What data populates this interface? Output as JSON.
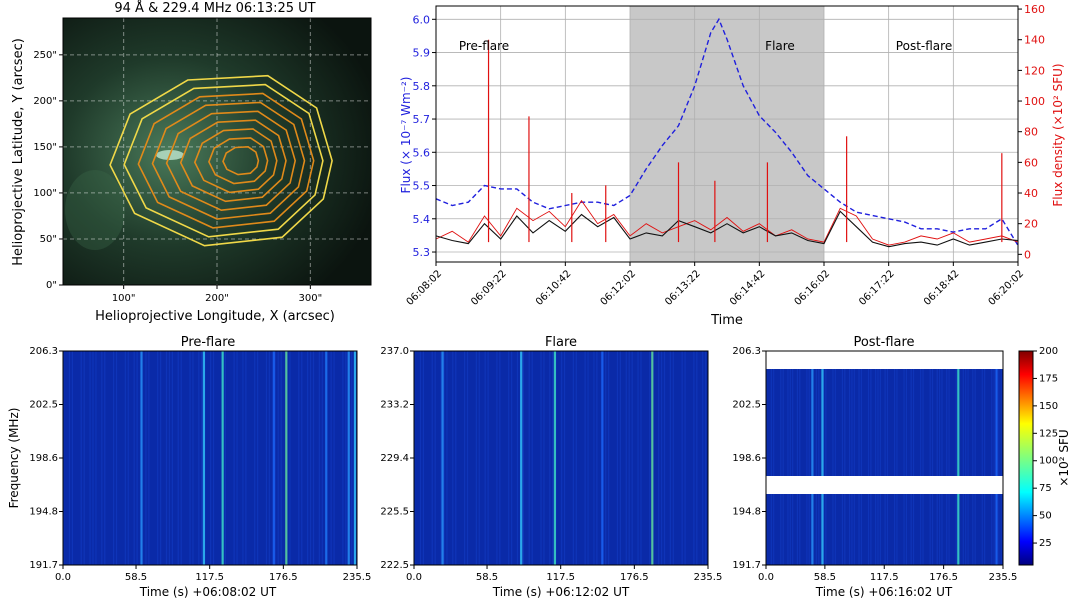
{
  "colors": {
    "flux_axis": "#1f1fdd",
    "density_axis": "#e01010",
    "contour_outer": "#f0d848",
    "contour_inner": "#e08a1a",
    "flare_band": "#c8c8c8",
    "smoothed": "#111111"
  },
  "chart_data": [
    {
      "id": "image_panel",
      "type": "heatmap",
      "title": "94 Å & 229.4 MHz  06:13:25 UT",
      "xlabel": "Helioprojective Longitude, X (arcsec)",
      "ylabel": "Helioprojective Latitude, Y (arcsec)",
      "xticks": [
        "100\"",
        "200\"",
        "300\""
      ],
      "yticks": [
        "0\"",
        "50\"",
        "100\"",
        "150\"",
        "200\"",
        "250\""
      ],
      "xlim": [
        35,
        365
      ],
      "ylim": [
        0,
        290
      ],
      "grid": true,
      "contour_center": [
        228,
        135
      ],
      "contour_levels": 9
    },
    {
      "id": "lightcurves",
      "type": "line",
      "xlabel": "Time",
      "ylabel_left": "Flux (× 10⁻⁷ Wm⁻²)",
      "ylabel_right": "Flux density (×10² SFU)",
      "xticks": [
        "06:08:02",
        "06:09:22",
        "06:10:42",
        "06:12:02",
        "06:13:22",
        "06:14:42",
        "06:16:02",
        "06:17:22",
        "06:18:42",
        "06:20:02"
      ],
      "yticks_left": [
        "5.3",
        "5.4",
        "5.5",
        "5.6",
        "5.7",
        "5.8",
        "5.9",
        "6.0"
      ],
      "yticks_right": [
        "0",
        "20",
        "40",
        "60",
        "80",
        "100",
        "120",
        "140",
        "160"
      ],
      "xlim_s": [
        0,
        720
      ],
      "ylim_left": [
        5.27,
        6.04
      ],
      "ylim_right": [
        -5,
        162
      ],
      "flare_interval_s": [
        240,
        480
      ],
      "phase_labels": [
        "Pre-flare",
        "Flare",
        "Post-flare"
      ],
      "grid": true,
      "series": [
        {
          "axis": "left",
          "style": "dashed",
          "t_s": [
            0,
            20,
            40,
            60,
            80,
            100,
            120,
            140,
            160,
            180,
            200,
            220,
            240,
            260,
            280,
            300,
            320,
            330,
            340,
            350,
            360,
            380,
            400,
            420,
            440,
            460,
            480,
            500,
            520,
            540,
            560,
            580,
            600,
            620,
            640,
            660,
            680,
            700,
            720
          ],
          "values": [
            5.46,
            5.44,
            5.45,
            5.5,
            5.49,
            5.49,
            5.45,
            5.43,
            5.44,
            5.45,
            5.45,
            5.44,
            5.47,
            5.55,
            5.62,
            5.68,
            5.8,
            5.88,
            5.96,
            6.0,
            5.94,
            5.8,
            5.71,
            5.66,
            5.6,
            5.53,
            5.49,
            5.45,
            5.42,
            5.41,
            5.4,
            5.39,
            5.37,
            5.37,
            5.36,
            5.37,
            5.37,
            5.4,
            5.32
          ]
        },
        {
          "axis": "right",
          "style": "solid",
          "t_s": [
            0,
            20,
            40,
            60,
            80,
            100,
            120,
            140,
            160,
            180,
            200,
            220,
            240,
            260,
            280,
            300,
            320,
            340,
            360,
            380,
            400,
            420,
            440,
            460,
            480,
            500,
            520,
            540,
            560,
            580,
            600,
            620,
            640,
            660,
            680,
            700,
            720
          ],
          "values": [
            10,
            15,
            8,
            25,
            12,
            30,
            22,
            28,
            18,
            35,
            20,
            26,
            12,
            20,
            14,
            18,
            22,
            16,
            24,
            15,
            20,
            12,
            16,
            10,
            8,
            30,
            25,
            10,
            6,
            8,
            12,
            10,
            14,
            8,
            10,
            12,
            8
          ]
        },
        {
          "axis": "right",
          "style": "smoothed",
          "t_s": [
            0,
            20,
            40,
            60,
            80,
            100,
            120,
            140,
            160,
            180,
            200,
            220,
            240,
            260,
            280,
            300,
            320,
            340,
            360,
            380,
            400,
            420,
            440,
            460,
            480,
            500,
            520,
            540,
            560,
            580,
            600,
            620,
            640,
            660,
            680,
            700,
            720
          ],
          "values": [
            12,
            9,
            7,
            20,
            10,
            25,
            14,
            22,
            15,
            26,
            18,
            24,
            10,
            14,
            12,
            22,
            18,
            14,
            20,
            14,
            18,
            12,
            14,
            9,
            7,
            28,
            18,
            8,
            5,
            7,
            8,
            6,
            10,
            6,
            8,
            10,
            9
          ]
        }
      ],
      "spikes_right": [
        {
          "t_s": 65,
          "v": 140
        },
        {
          "t_s": 115,
          "v": 90
        },
        {
          "t_s": 168,
          "v": 40
        },
        {
          "t_s": 210,
          "v": 45
        },
        {
          "t_s": 300,
          "v": 60
        },
        {
          "t_s": 345,
          "v": 48
        },
        {
          "t_s": 410,
          "v": 60
        },
        {
          "t_s": 508,
          "v": 77
        },
        {
          "t_s": 700,
          "v": 66
        }
      ]
    },
    {
      "id": "spectrogram_pre",
      "type": "heatmap",
      "title": "Pre-flare",
      "ylabel": "Frequency (MHz)",
      "xlabel": "Time (s)   +06:08:02 UT",
      "xticks": [
        "0.0",
        "58.5",
        "117.5",
        "176.5",
        "235.5"
      ],
      "yticks": [
        "191.7",
        "194.8",
        "198.6",
        "202.5",
        "206.3"
      ],
      "bright_lanes_s": [
        62,
        112,
        127,
        168,
        178,
        210,
        228,
        233
      ]
    },
    {
      "id": "spectrogram_flare",
      "type": "heatmap",
      "title": "Flare",
      "xlabel": "Time (s)   +06:12:02 UT",
      "xticks": [
        "0.0",
        "58.5",
        "117.5",
        "176.5",
        "235.5"
      ],
      "yticks": [
        "222.5",
        "225.5",
        "229.4",
        "233.2",
        "237.0"
      ],
      "bright_lanes_s": [
        22,
        85,
        112,
        150,
        190
      ]
    },
    {
      "id": "spectrogram_post",
      "type": "heatmap",
      "title": "Post-flare",
      "xlabel": "Time (s)   +06:16:02 UT",
      "xticks": [
        "0.0",
        "58.5",
        "117.5",
        "176.5",
        "235.5"
      ],
      "yticks": [
        "191.7",
        "194.8",
        "198.6",
        "202.5",
        "206.3"
      ],
      "bright_lanes_s": [
        45,
        55,
        190,
        228
      ]
    },
    {
      "id": "colorbar",
      "type": "heatmap",
      "label": "×10² SFU",
      "ticks": [
        "25",
        "50",
        "75",
        "100",
        "125",
        "150",
        "175",
        "200"
      ],
      "range": [
        5,
        200
      ]
    }
  ]
}
